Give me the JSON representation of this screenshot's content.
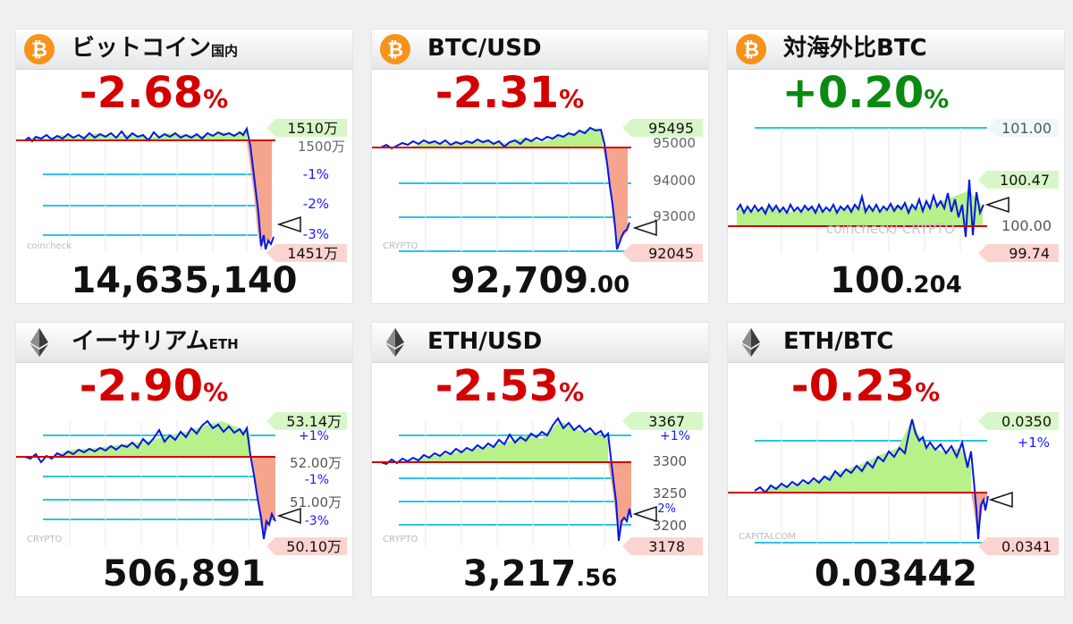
{
  "cards": [
    {
      "title": "ビットコイン",
      "subtitle": "国内",
      "coin_icon": "bitcoin-icon",
      "change": "-2.68",
      "percent_sign": "%",
      "direction": "down",
      "price_int": "14,635,140",
      "price_dec": "",
      "high_label": "1510万",
      "low_label": "1451万",
      "grid_labels": [
        "1500万",
        "-1%",
        "-2%",
        "-3%"
      ],
      "watermark": "coincheck",
      "colors": {
        "change": "#d40000"
      }
    },
    {
      "title": "BTC/USD",
      "subtitle": "",
      "coin_icon": "bitcoin-icon",
      "change": "-2.31",
      "percent_sign": "%",
      "direction": "down",
      "price_int": "92,709",
      "price_dec": ".00",
      "high_label": "95495",
      "low_label": "92045",
      "grid_labels": [
        "95000",
        "94000",
        "93000"
      ],
      "watermark": "CRYPTO",
      "colors": {
        "change": "#d40000"
      }
    },
    {
      "title": "対海外比BTC",
      "subtitle": "",
      "coin_icon": "bitcoin-icon",
      "change": "+0.20",
      "percent_sign": "%",
      "direction": "up",
      "price_int": "100",
      "price_dec": ".204",
      "high_label": "100.47",
      "low_label": "99.74",
      "grid_labels": [
        "101.00",
        "100.00"
      ],
      "watermark": "coincheck/ CRYPTO",
      "colors": {
        "change": "#0a8a10"
      }
    },
    {
      "title": "イーサリアム",
      "subtitle": "ETH",
      "coin_icon": "ethereum-icon",
      "change": "-2.90",
      "percent_sign": "%",
      "direction": "down",
      "price_int": "506,891",
      "price_dec": "",
      "high_label": "53.14万",
      "low_label": "50.10万",
      "grid_labels": [
        "+1%",
        "52.00万",
        "-1%",
        "51.00万",
        "-3%"
      ],
      "watermark": "CRYPTO",
      "colors": {
        "change": "#d40000"
      }
    },
    {
      "title": "ETH/USD",
      "subtitle": "",
      "coin_icon": "ethereum-icon",
      "change": "-2.53",
      "percent_sign": "%",
      "direction": "down",
      "price_int": "3,217",
      "price_dec": ".56",
      "high_label": "3367",
      "low_label": "3178",
      "grid_labels": [
        "+1%",
        "3300",
        "3250",
        "-2%",
        "3200"
      ],
      "watermark": "CRYPTO",
      "colors": {
        "change": "#d40000"
      }
    },
    {
      "title": "ETH/BTC",
      "subtitle": "",
      "coin_icon": "ethereum-icon",
      "change": "-0.23",
      "percent_sign": "%",
      "direction": "down",
      "price_int": "0.03442",
      "price_dec": "",
      "high_label": "0.0350",
      "low_label": "0.0341",
      "grid_labels": [
        "+1%"
      ],
      "watermark": "CAPITALCOM",
      "colors": {
        "change": "#d40000"
      }
    }
  ]
}
